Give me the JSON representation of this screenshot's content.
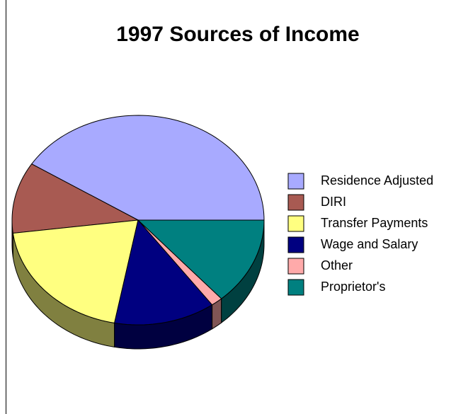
{
  "chart_data": {
    "type": "pie",
    "title": "1997 Sources of Income",
    "categories": [
      "Residence Adjusted",
      "DIRI",
      "Transfer Payments",
      "Wage and Salary",
      "Other",
      "Proprietor's"
    ],
    "values": [
      41,
      11,
      20,
      13,
      1.5,
      13.5
    ],
    "colors": [
      "#a8aaff",
      "#a85a52",
      "#ffff80",
      "#000080",
      "#ffaaaa",
      "#008080"
    ],
    "legend": "right"
  }
}
